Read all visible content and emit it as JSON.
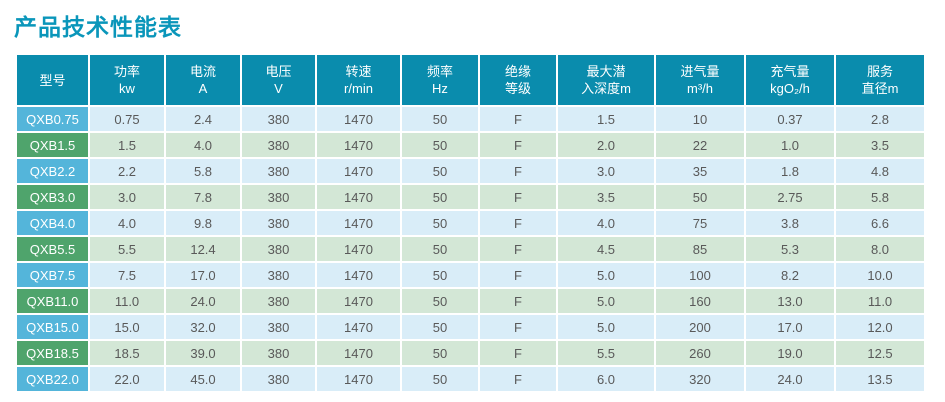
{
  "page": {
    "title": "产品技术性能表"
  },
  "colors": {
    "title_text": "#0a96ba",
    "header_bg": "#0a8cad",
    "header_text": "#ffffff",
    "model_cell_blue": "#54b5da",
    "model_cell_green": "#4fa46c",
    "row_blue": "#d9edf8",
    "row_green": "#d3e7d6",
    "data_text": "#595959",
    "separator": "#ffffff"
  },
  "table": {
    "columns": [
      {
        "id": "model",
        "line1": "型号",
        "line2": ""
      },
      {
        "id": "power",
        "line1": "功率",
        "line2": "kw"
      },
      {
        "id": "current",
        "line1": "电流",
        "line2": "A"
      },
      {
        "id": "voltage",
        "line1": "电压",
        "line2": "V"
      },
      {
        "id": "speed",
        "line1": "转速",
        "line2": "r/min"
      },
      {
        "id": "frequency",
        "line1": "频率",
        "line2": "Hz"
      },
      {
        "id": "insulation-class",
        "line1": "绝缘",
        "line2": "等级"
      },
      {
        "id": "max-depth",
        "line1": "最大潜",
        "line2": "入深度m"
      },
      {
        "id": "air-intake",
        "line1": "进气量",
        "line2": "m³/h"
      },
      {
        "id": "aeration",
        "line1": "充气量",
        "line2": "kgO₂/h"
      },
      {
        "id": "service-diameter",
        "line1": "服务",
        "line2": "直径m"
      }
    ],
    "rows": [
      {
        "model": "QXB0.75",
        "values": [
          "0.75",
          "2.4",
          "380",
          "1470",
          "50",
          "F",
          "1.5",
          "10",
          "0.37",
          "2.8"
        ]
      },
      {
        "model": "QXB1.5",
        "values": [
          "1.5",
          "4.0",
          "380",
          "1470",
          "50",
          "F",
          "2.0",
          "22",
          "1.0",
          "3.5"
        ]
      },
      {
        "model": "QXB2.2",
        "values": [
          "2.2",
          "5.8",
          "380",
          "1470",
          "50",
          "F",
          "3.0",
          "35",
          "1.8",
          "4.8"
        ]
      },
      {
        "model": "QXB3.0",
        "values": [
          "3.0",
          "7.8",
          "380",
          "1470",
          "50",
          "F",
          "3.5",
          "50",
          "2.75",
          "5.8"
        ]
      },
      {
        "model": "QXB4.0",
        "values": [
          "4.0",
          "9.8",
          "380",
          "1470",
          "50",
          "F",
          "4.0",
          "75",
          "3.8",
          "6.6"
        ]
      },
      {
        "model": "QXB5.5",
        "values": [
          "5.5",
          "12.4",
          "380",
          "1470",
          "50",
          "F",
          "4.5",
          "85",
          "5.3",
          "8.0"
        ]
      },
      {
        "model": "QXB7.5",
        "values": [
          "7.5",
          "17.0",
          "380",
          "1470",
          "50",
          "F",
          "5.0",
          "100",
          "8.2",
          "10.0"
        ]
      },
      {
        "model": "QXB11.0",
        "values": [
          "11.0",
          "24.0",
          "380",
          "1470",
          "50",
          "F",
          "5.0",
          "160",
          "13.0",
          "11.0"
        ]
      },
      {
        "model": "QXB15.0",
        "values": [
          "15.0",
          "32.0",
          "380",
          "1470",
          "50",
          "F",
          "5.0",
          "200",
          "17.0",
          "12.0"
        ]
      },
      {
        "model": "QXB18.5",
        "values": [
          "18.5",
          "39.0",
          "380",
          "1470",
          "50",
          "F",
          "5.5",
          "260",
          "19.0",
          "12.5"
        ]
      },
      {
        "model": "QXB22.0",
        "values": [
          "22.0",
          "45.0",
          "380",
          "1470",
          "50",
          "F",
          "6.0",
          "320",
          "24.0",
          "13.5"
        ]
      }
    ]
  }
}
